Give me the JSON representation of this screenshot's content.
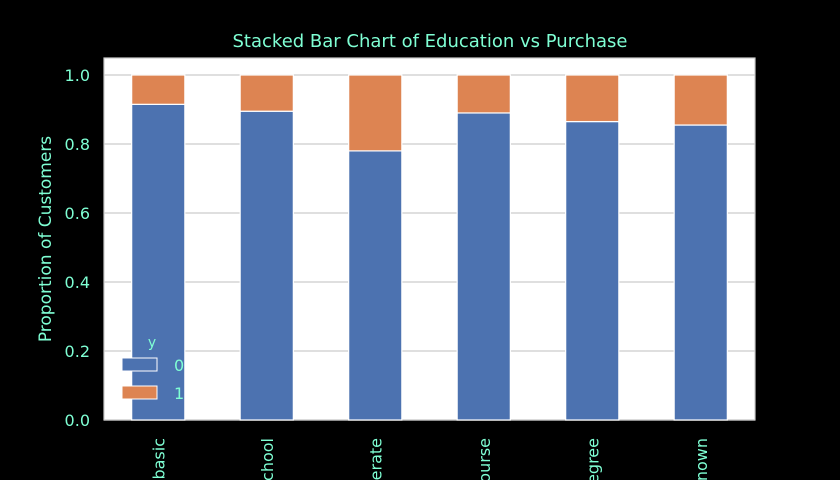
{
  "chart_data": {
    "type": "bar",
    "stacked": true,
    "title": "Stacked Bar Chart of Education vs Purchase",
    "xlabel": "",
    "ylabel": "Proportion of Customers",
    "ylim": [
      0,
      1.0
    ],
    "yticks": [
      "0.0",
      "0.2",
      "0.4",
      "0.6",
      "0.8",
      "1.0"
    ],
    "categories": [
      "basic",
      "school",
      "erate",
      "ourse",
      "egree",
      "nown"
    ],
    "series": [
      {
        "name": "0",
        "color": "#4c72b0",
        "values": [
          0.915,
          0.895,
          0.78,
          0.89,
          0.865,
          0.855
        ]
      },
      {
        "name": "1",
        "color": "#dd8452",
        "values": [
          0.085,
          0.105,
          0.22,
          0.11,
          0.135,
          0.145
        ]
      }
    ],
    "legend": {
      "title": "y",
      "position": "lower-left"
    },
    "grid": true,
    "colors": {
      "background": "#000000",
      "plot_area": "#ffffff",
      "text": "#7fffd4",
      "grid": "#cccccc"
    }
  }
}
